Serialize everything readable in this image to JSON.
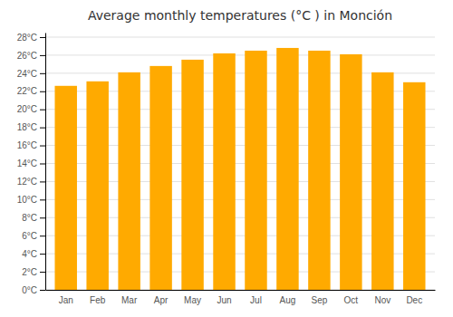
{
  "chart_data": {
    "type": "bar",
    "title": "Average monthly temperatures (°C ) in Monción",
    "categories": [
      "Jan",
      "Feb",
      "Mar",
      "Apr",
      "May",
      "Jun",
      "Jul",
      "Aug",
      "Sep",
      "Oct",
      "Nov",
      "Dec"
    ],
    "values": [
      22.6,
      23.1,
      24.1,
      24.8,
      25.5,
      26.2,
      26.5,
      26.8,
      26.5,
      26.1,
      24.1,
      23.0
    ],
    "color": "#FFAA00",
    "ylim": [
      0,
      28.5
    ],
    "yticks": [
      {
        "value": 0,
        "label": "0°C"
      },
      {
        "value": 2,
        "label": "2°C"
      },
      {
        "value": 4,
        "label": "4°C"
      },
      {
        "value": 6,
        "label": "6°C"
      },
      {
        "value": 8,
        "label": "8°C"
      },
      {
        "value": 10,
        "label": "10°C"
      },
      {
        "value": 12,
        "label": "12°C"
      },
      {
        "value": 14,
        "label": "14°C"
      },
      {
        "value": 16,
        "label": "16°C"
      },
      {
        "value": 18,
        "label": "18°C"
      },
      {
        "value": 20,
        "label": "20°C"
      },
      {
        "value": 22,
        "label": "22°C"
      },
      {
        "value": 24,
        "label": "24°C"
      },
      {
        "value": 26,
        "label": "26°C"
      },
      {
        "value": 28,
        "label": "28°C"
      }
    ],
    "grid": true
  }
}
